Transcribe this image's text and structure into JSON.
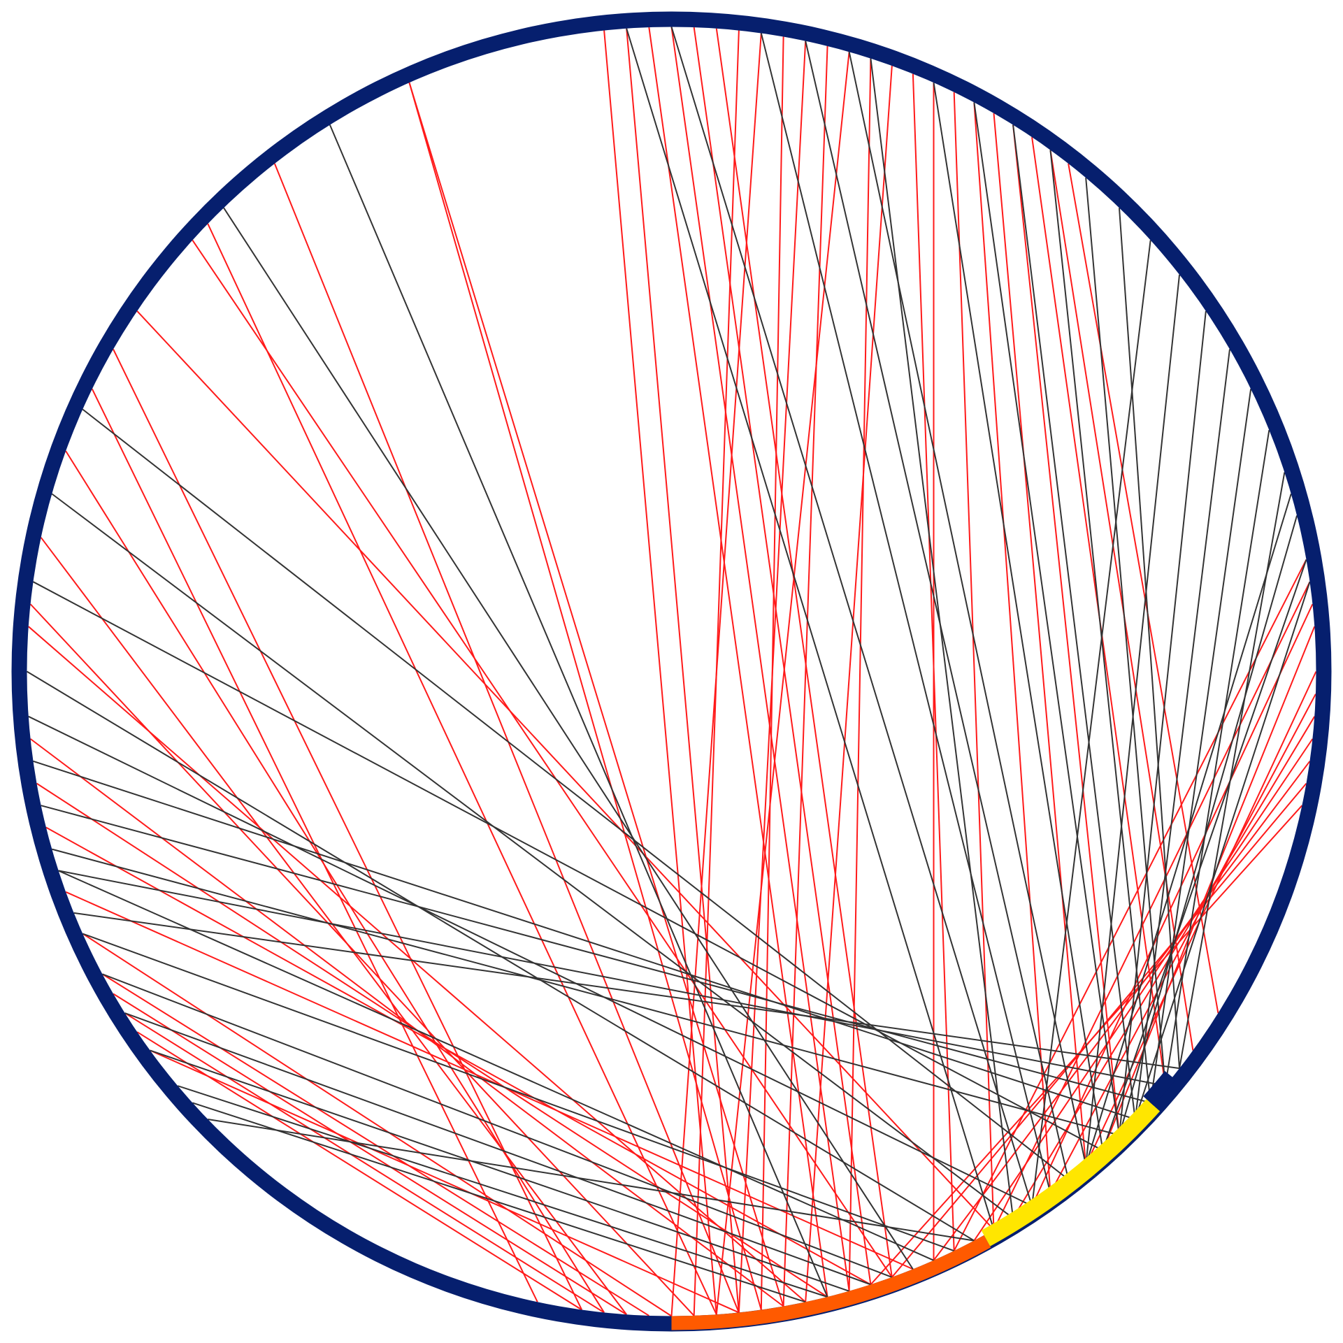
{
  "diagram": {
    "type": "chord-circle",
    "colors": {
      "background": "#ffffff",
      "ring_primary": "#061f6e",
      "segment_orange": "#ff5a00",
      "segment_yellow": "#ffe600",
      "segment_red": "#e81010",
      "chord_red": "#ff1a1a",
      "chord_dark": "#333333"
    },
    "ring_segments": [
      {
        "name": "main",
        "color": "#061f6e",
        "start_deg": 323,
        "end_deg": 445
      },
      {
        "name": "orange",
        "color": "#ff5a00",
        "start_deg": 420,
        "end_deg": 445,
        "alt": "outer"
      },
      {
        "name": "yellow",
        "color": "#ffe600",
        "start_deg": 400,
        "end_deg": 420
      }
    ],
    "chord_colors": [
      "red",
      "dark"
    ]
  }
}
